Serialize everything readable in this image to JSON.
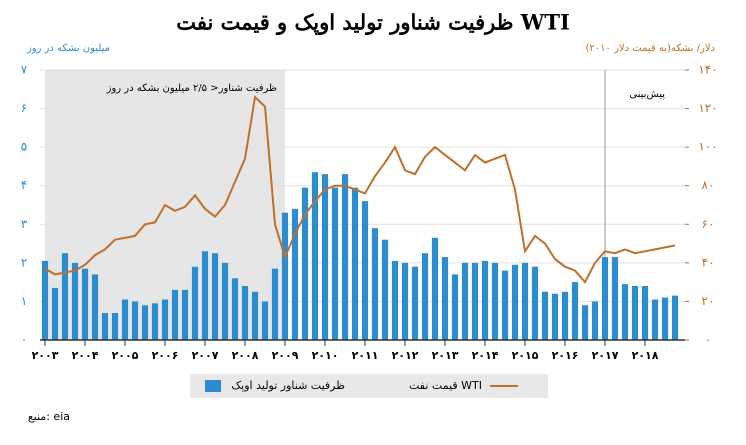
{
  "chart_data": {
    "type": "bar-line",
    "title": "ظرفیت شناور تولید اوپک و قیمت نفت WTI",
    "y_label": "میلیون بشکه در روز",
    "y2_label": "دلار/ بشکه(به قیمت دلار ۲۰۱۰)",
    "source": "منبع: eia",
    "x": [
      2003,
      2003.25,
      2003.5,
      2003.75,
      2004,
      2004.25,
      2004.5,
      2004.75,
      2005,
      2005.25,
      2005.5,
      2005.75,
      2006,
      2006.25,
      2006.5,
      2006.75,
      2007,
      2007.25,
      2007.5,
      2007.75,
      2008,
      2008.25,
      2008.5,
      2008.75,
      2009,
      2009.25,
      2009.5,
      2009.75,
      2010,
      2010.25,
      2010.5,
      2010.75,
      2011,
      2011.25,
      2011.5,
      2011.75,
      2012,
      2012.25,
      2012.5,
      2012.75,
      2013,
      2013.25,
      2013.5,
      2013.75,
      2014,
      2014.25,
      2014.5,
      2014.75,
      2015,
      2015.25,
      2015.5,
      2015.75,
      2016,
      2016.25,
      2016.5,
      2016.75,
      2017,
      2017.25,
      2017.5,
      2017.75,
      2018,
      2018.25,
      2018.5,
      2018.75
    ],
    "series": [
      {
        "name": "ظرفیت شناور تولید اوپک",
        "type": "bar",
        "color": "#2b8ccf",
        "values": [
          2.05,
          1.35,
          2.25,
          2.0,
          1.85,
          1.7,
          0.7,
          0.7,
          1.05,
          1.0,
          0.9,
          0.95,
          1.05,
          1.3,
          1.3,
          1.9,
          2.3,
          2.25,
          2.0,
          1.6,
          1.4,
          1.25,
          1.0,
          1.85,
          3.3,
          3.4,
          3.95,
          4.35,
          4.3,
          3.95,
          4.3,
          3.95,
          3.6,
          2.9,
          2.6,
          2.05,
          2.0,
          1.9,
          2.25,
          2.65,
          2.15,
          1.7,
          2.0,
          2.0,
          2.05,
          2.0,
          1.8,
          1.95,
          2.0,
          1.9,
          1.25,
          1.2,
          1.25,
          1.5,
          0.9,
          1.0,
          2.15,
          2.15,
          1.45,
          1.4,
          1.4,
          1.05,
          1.1,
          1.15
        ]
      },
      {
        "name": "قیمت نفت WTI",
        "type": "line",
        "axis": "y2",
        "color": "#c0702a",
        "values": [
          37,
          34,
          35,
          36,
          39,
          44,
          47,
          52,
          53,
          54,
          60,
          61,
          70,
          67,
          69,
          75,
          68,
          64,
          70,
          82,
          94,
          126,
          121,
          60,
          43,
          55,
          65,
          72,
          78,
          80,
          80,
          78,
          76,
          85,
          92,
          100,
          88,
          86,
          95,
          100,
          96,
          92,
          88,
          96,
          92,
          94,
          96,
          78,
          46,
          54,
          50,
          42,
          38,
          36,
          30,
          40,
          46,
          45,
          47,
          45,
          46,
          47,
          48,
          49
        ]
      }
    ],
    "xlim": [
      2003,
      2019
    ],
    "xticks": [
      {
        "value": 2003,
        "label": "۲۰۰۳"
      },
      {
        "value": 2004,
        "label": "۲۰۰۴"
      },
      {
        "value": 2005,
        "label": "۲۰۰۵"
      },
      {
        "value": 2006,
        "label": "۲۰۰۶"
      },
      {
        "value": 2007,
        "label": "۲۰۰۷"
      },
      {
        "value": 2008,
        "label": "۲۰۰۸"
      },
      {
        "value": 2009,
        "label": "۲۰۰۹"
      },
      {
        "value": 2010,
        "label": "۲۰۱۰"
      },
      {
        "value": 2011,
        "label": "۲۰۱۱"
      },
      {
        "value": 2012,
        "label": "۲۰۱۲"
      },
      {
        "value": 2013,
        "label": "۲۰۱۳"
      },
      {
        "value": 2014,
        "label": "۲۰۱۴"
      },
      {
        "value": 2015,
        "label": "۲۰۱۵"
      },
      {
        "value": 2016,
        "label": "۲۰۱۶"
      },
      {
        "value": 2017,
        "label": "۲۰۱۷"
      },
      {
        "value": 2018,
        "label": "۲۰۱۸"
      }
    ],
    "ylim": [
      0,
      7
    ],
    "yticks": [
      {
        "value": 0,
        "label": "۰"
      },
      {
        "value": 1,
        "label": "۱"
      },
      {
        "value": 2,
        "label": "۲"
      },
      {
        "value": 3,
        "label": "۳"
      },
      {
        "value": 4,
        "label": "۴"
      },
      {
        "value": 5,
        "label": "۵"
      },
      {
        "value": 6,
        "label": "۶"
      },
      {
        "value": 7,
        "label": "۷"
      }
    ],
    "y2lim": [
      0,
      140
    ],
    "y2ticks": [
      {
        "value": 0,
        "label": "۰"
      },
      {
        "value": 20,
        "label": "۲۰"
      },
      {
        "value": 40,
        "label": "۴۰"
      },
      {
        "value": 60,
        "label": "۶۰"
      },
      {
        "value": 80,
        "label": "۸۰"
      },
      {
        "value": 100,
        "label": "۱۰۰"
      },
      {
        "value": 120,
        "label": "۱۲۰"
      },
      {
        "value": 140,
        "label": "۱۴۰"
      }
    ],
    "grid": true,
    "shade": {
      "label": "ظرفیت شناور< ۲/۵ میلیون بشکه در روز",
      "x0": 2003,
      "x1": 2009
    },
    "forecast": {
      "label": "پیش‌بینی",
      "x": 2017
    }
  }
}
